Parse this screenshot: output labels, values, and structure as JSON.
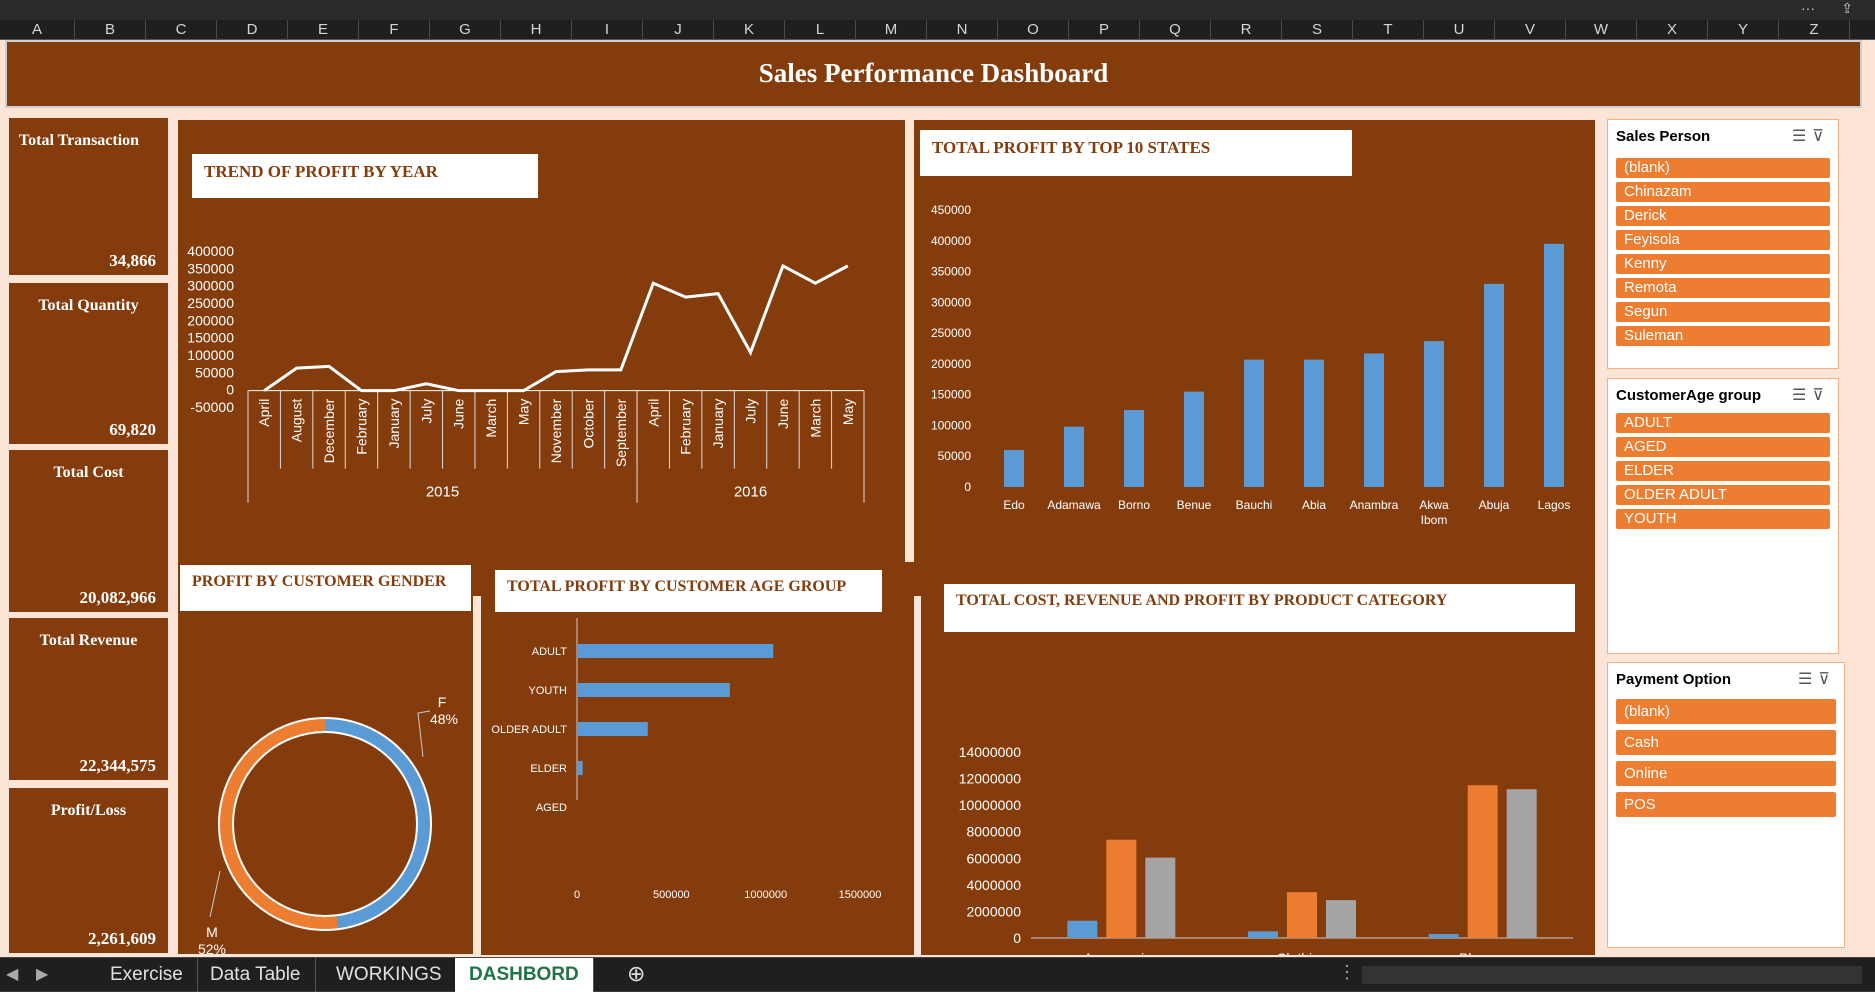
{
  "columns": [
    "A",
    "B",
    "C",
    "D",
    "E",
    "F",
    "G",
    "H",
    "I",
    "J",
    "K",
    "L",
    "M",
    "N",
    "O",
    "P",
    "Q",
    "R",
    "S",
    "T",
    "U",
    "V",
    "W",
    "X",
    "Y",
    "Z"
  ],
  "dashboard": {
    "title": "Sales Performance Dashboard"
  },
  "kpis": [
    {
      "label": "Total Transaction",
      "value": "34,866"
    },
    {
      "label": "Total Quantity",
      "value": "69,820"
    },
    {
      "label": "Total Cost",
      "value": "20,082,966"
    },
    {
      "label": "Total Revenue",
      "value": "22,344,575"
    },
    {
      "label": "Profit/Loss",
      "value": "2,261,609"
    }
  ],
  "charts": {
    "trend_title": "TREND OF PROFIT BY YEAR",
    "states_title": "TOTAL PROFIT BY TOP 10 STATES",
    "gender_title": "PROFIT BY CUSTOMER GENDER",
    "age_title": "TOTAL PROFIT BY CUSTOMER AGE GROUP",
    "category_title": "TOTAL COST, REVENUE AND PROFIT BY PRODUCT CATEGORY"
  },
  "chart_data": [
    {
      "type": "line",
      "title": "TREND OF PROFIT BY YEAR",
      "groups": [
        {
          "label": "2015",
          "categories": [
            "April",
            "August",
            "December",
            "February",
            "January",
            "July",
            "June",
            "March",
            "May",
            "November",
            "October",
            "September"
          ]
        },
        {
          "label": "2016",
          "categories": [
            "April",
            "February",
            "January",
            "July",
            "June",
            "March",
            "May"
          ]
        }
      ],
      "values": [
        0,
        65000,
        70000,
        0,
        0,
        20000,
        0,
        0,
        0,
        55000,
        60000,
        60000,
        310000,
        270000,
        280000,
        110000,
        360000,
        310000,
        360000
      ],
      "yticks": [
        400000,
        350000,
        300000,
        250000,
        200000,
        150000,
        100000,
        50000,
        0,
        -50000
      ],
      "ylim": [
        -50000,
        400000
      ],
      "color": "#ffffff"
    },
    {
      "type": "bar",
      "title": "TOTAL PROFIT BY TOP 10 STATES",
      "categories": [
        "Edo",
        "Adamawa",
        "Borno",
        "Benue",
        "Bauchi",
        "Abia",
        "Anambra",
        "Akwa Ibom",
        "Abuja",
        "Lagos"
      ],
      "values": [
        60000,
        98000,
        125000,
        155000,
        207000,
        207000,
        217000,
        237000,
        330000,
        395000
      ],
      "yticks": [
        450000,
        400000,
        350000,
        300000,
        250000,
        200000,
        150000,
        100000,
        50000,
        0
      ],
      "ylim": [
        0,
        450000
      ],
      "color": "#5b9bd5"
    },
    {
      "type": "pie",
      "title": "PROFIT BY CUSTOMER GENDER",
      "slices": [
        {
          "label": "F",
          "pct": "48%",
          "value": 48,
          "color": "#5b9bd5"
        },
        {
          "label": "M",
          "pct": "52%",
          "value": 52,
          "color": "#ed7d31"
        }
      ]
    },
    {
      "type": "bar",
      "orientation": "horizontal",
      "title": "TOTAL PROFIT BY CUSTOMER AGE GROUP",
      "categories": [
        "ADULT",
        "YOUTH",
        "OLDER ADULT",
        "ELDER",
        "AGED"
      ],
      "values": [
        1040000,
        810000,
        375000,
        30000,
        0
      ],
      "xticks": [
        "0",
        "500000",
        "1000000",
        "1500000"
      ],
      "xlim": [
        0,
        1500000
      ],
      "color": "#5b9bd5"
    },
    {
      "type": "bar",
      "title": "TOTAL COST, REVENUE AND PROFIT BY PRODUCT CATEGORY",
      "categories": [
        "Accessories",
        "Clothing",
        "Phones"
      ],
      "series": [
        {
          "values": [
            1300000,
            500000,
            300000
          ],
          "color": "#5b9bd5"
        },
        {
          "values": [
            7400000,
            3450000,
            11500000
          ],
          "color": "#ed7d31"
        },
        {
          "values": [
            6050000,
            2850000,
            11200000
          ],
          "color": "#a5a5a5"
        }
      ],
      "yticks": [
        14000000,
        12000000,
        10000000,
        8000000,
        6000000,
        4000000,
        2000000,
        0
      ],
      "ylim": [
        0,
        14000000
      ]
    }
  ],
  "slicers": [
    {
      "title": "Sales Person",
      "items": [
        "(blank)",
        "Chinazam",
        "Derick",
        "Feyisola",
        "Kenny",
        "Remota",
        "Segun",
        "Suleman"
      ]
    },
    {
      "title": "CustomerAge group",
      "items": [
        "ADULT",
        "AGED",
        "ELDER",
        "OLDER ADULT",
        "YOUTH"
      ]
    },
    {
      "title": "Payment Option",
      "items": [
        "(blank)",
        "Cash",
        "Online",
        "POS"
      ]
    }
  ],
  "sheet_tabs": [
    "Exercise",
    "Data Table",
    "WORKINGS",
    "DASHBORD"
  ],
  "active_tab": "DASHBORD"
}
